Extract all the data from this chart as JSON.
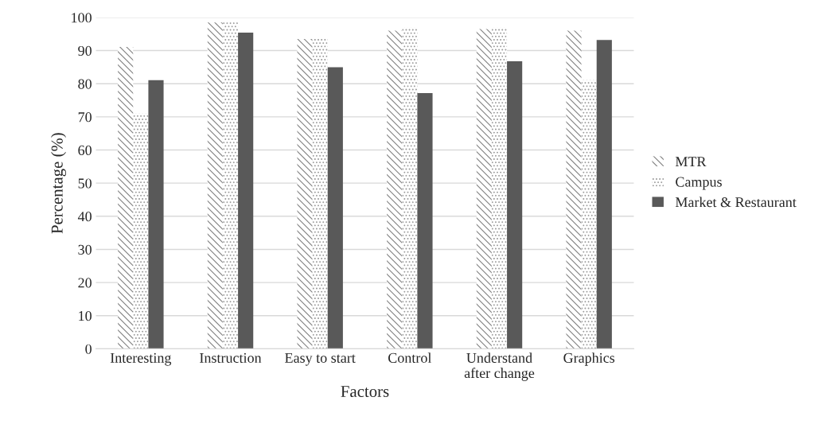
{
  "chart_data": {
    "type": "bar",
    "xlabel": "Factors",
    "ylabel": "Percentage (%)",
    "categories": [
      "Interesting",
      "Instruction",
      "Easy to start",
      "Control",
      "Understand\nafter change",
      "Graphics"
    ],
    "series": [
      {
        "name": "MTR",
        "color": "#7f7f7f",
        "values": [
          91.1,
          98.5,
          93.5,
          96.0,
          96.5,
          96.0
        ]
      },
      {
        "name": "Campus",
        "color": "#999999",
        "values": [
          71.0,
          98.8,
          94.0,
          96.9,
          96.9,
          81.1
        ]
      },
      {
        "name": "Market & Restaurant",
        "color": "#595959",
        "values": [
          81.1,
          95.4,
          85.0,
          77.2,
          86.8,
          93.2
        ]
      }
    ],
    "ylim": [
      0,
      100
    ],
    "yticks": [
      0,
      10,
      20,
      30,
      40,
      50,
      60,
      70,
      80,
      90,
      100
    ],
    "grid": "y",
    "legend": "right"
  }
}
